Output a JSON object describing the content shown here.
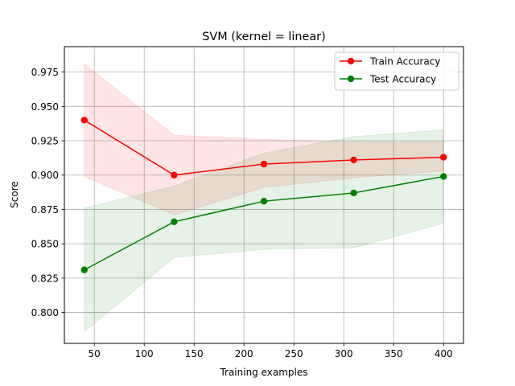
{
  "chart_data": {
    "type": "line",
    "title": "SVM (kernel = linear)",
    "xlabel": "Training examples",
    "ylabel": "Score",
    "xlim": [
      20,
      420
    ],
    "ylim": [
      0.7775,
      0.9935
    ],
    "xticks": [
      50,
      100,
      150,
      200,
      250,
      300,
      350,
      400
    ],
    "xtick_labels": [
      "50",
      "100",
      "150",
      "200",
      "250",
      "300",
      "350",
      "400"
    ],
    "yticks": [
      0.8,
      0.825,
      0.85,
      0.875,
      0.9,
      0.925,
      0.95,
      0.975
    ],
    "ytick_labels": [
      "0.800",
      "0.825",
      "0.850",
      "0.875",
      "0.900",
      "0.925",
      "0.950",
      "0.975"
    ],
    "grid": true,
    "legend_position": "top-right",
    "x": [
      40,
      130,
      220,
      310,
      400
    ],
    "series": [
      {
        "name": "Train Accuracy",
        "color": "#ff0000",
        "band_color": "#ff0000",
        "values": [
          0.94,
          0.9,
          0.908,
          0.911,
          0.913
        ],
        "upper": [
          0.981,
          0.929,
          0.926,
          0.924,
          0.924
        ],
        "lower": [
          0.899,
          0.871,
          0.891,
          0.898,
          0.903
        ]
      },
      {
        "name": "Test Accuracy",
        "color": "#008000",
        "band_color": "#008000",
        "values": [
          0.831,
          0.866,
          0.881,
          0.887,
          0.899
        ],
        "upper": [
          0.876,
          0.892,
          0.916,
          0.928,
          0.933
        ],
        "lower": [
          0.786,
          0.84,
          0.846,
          0.847,
          0.865
        ]
      }
    ]
  }
}
